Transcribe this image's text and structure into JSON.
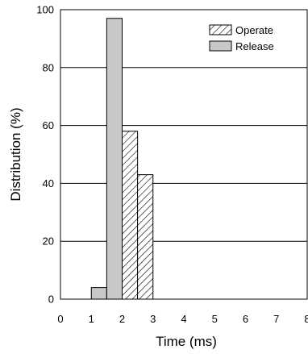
{
  "chart_data": {
    "type": "bar",
    "title": "",
    "xlabel": "Time (ms)",
    "ylabel": "Distribution (%)",
    "xlim": [
      0,
      8
    ],
    "ylim": [
      0,
      100
    ],
    "xticks": [
      "0",
      "1",
      "2",
      "3",
      "4",
      "5",
      "6",
      "7",
      "8"
    ],
    "yticks": [
      "0",
      "20",
      "40",
      "60",
      "80",
      "100"
    ],
    "grid": "horizontal",
    "legend_position": "top-right",
    "series": [
      {
        "name": "Operate",
        "pattern": "diagonal-hatch",
        "color": "#ffffff",
        "bins": [
          {
            "x0": 2.0,
            "x1": 2.5,
            "value": 58
          },
          {
            "x0": 2.5,
            "x1": 3.0,
            "value": 43
          }
        ]
      },
      {
        "name": "Release",
        "pattern": "solid",
        "color": "#c8c8c8",
        "bins": [
          {
            "x0": 1.0,
            "x1": 1.5,
            "value": 4
          },
          {
            "x0": 1.5,
            "x1": 2.0,
            "value": 97
          }
        ]
      }
    ]
  }
}
